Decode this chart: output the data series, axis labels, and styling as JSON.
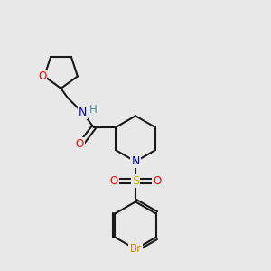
{
  "background_color": "#e8e8e8",
  "bond_color": "#1a1a1a",
  "atom_colors": {
    "O": "#ff0000",
    "N": "#0000cc",
    "H": "#4a9090",
    "S": "#bbbb00",
    "Br": "#cc8800"
  },
  "figsize": [
    3.0,
    3.0
  ],
  "dpi": 100,
  "xlim": [
    0,
    10
  ],
  "ylim": [
    0,
    10
  ]
}
